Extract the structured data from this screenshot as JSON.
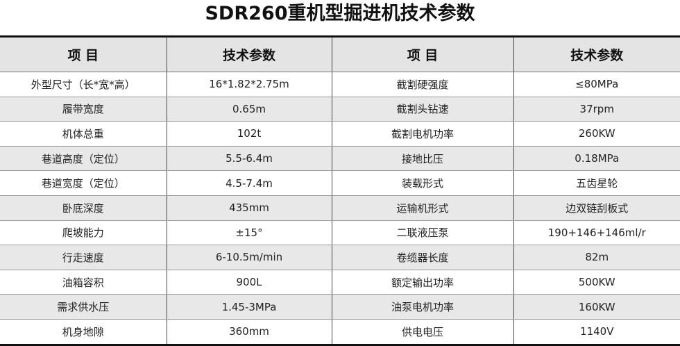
{
  "title": "SDR260重机型掘进机技术参数",
  "headers": [
    "项 目",
    "技术参数",
    "项 目",
    "技术参数"
  ],
  "rows": [
    [
      "外型尺寸（长*宽*高）",
      "16*1.82*2.75m",
      "截割硬强度",
      "≤80MPa"
    ],
    [
      "履带宽度",
      "0.65m",
      "截割头钻速",
      "37rpm"
    ],
    [
      "机体总重",
      "102t",
      "截割电机功率",
      "260KW"
    ],
    [
      "巷道高度（定位）",
      "5.5-6.4m",
      "接地比压",
      "0.18MPa"
    ],
    [
      "巷道宽度（定位）",
      "4.5-7.4m",
      "装载形式",
      "五齿星轮"
    ],
    [
      "卧底深度",
      "435mm",
      "运输机形式",
      "边双链刮板式"
    ],
    [
      "爬坡能力",
      "±15°",
      "二联液压泵",
      "190+146+146ml/r"
    ],
    [
      "行走速度",
      "6-10.5m/min",
      "卷缆器长度",
      "82m"
    ],
    [
      "油箱容积",
      "900L",
      "额定输出功率",
      "500KW"
    ],
    [
      "需求供水压",
      "1.45-3MPa",
      "油泵电机功率",
      "160KW"
    ],
    [
      "机身地隙",
      "360mm",
      "供电电压",
      "1140V"
    ]
  ]
}
